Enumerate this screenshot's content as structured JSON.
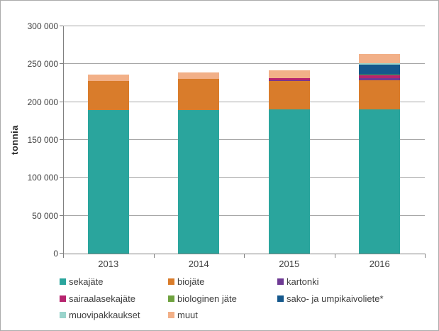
{
  "chart_data": {
    "type": "bar",
    "stacked": true,
    "title": "",
    "ylabel": "tonnia",
    "xlabel": "",
    "categories": [
      "2013",
      "2014",
      "2015",
      "2016"
    ],
    "series": [
      {
        "name": "sekajäte",
        "color": "#2aa59d",
        "values": [
          189000,
          189000,
          190000,
          190000
        ]
      },
      {
        "name": "biojäte",
        "color": "#d97c2b",
        "values": [
          39000,
          42000,
          38000,
          38500
        ]
      },
      {
        "name": "kartonki",
        "color": "#6e3a94",
        "values": [
          0,
          0,
          1000,
          3000
        ]
      },
      {
        "name": "sairaalasekajäte",
        "color": "#b6246e",
        "values": [
          0,
          0,
          2500,
          4000
        ]
      },
      {
        "name": "biologinen jäte",
        "color": "#6fa23f",
        "values": [
          0,
          0,
          0,
          500
        ]
      },
      {
        "name": "sako- ja umpikaivoliete*",
        "color": "#15588c",
        "values": [
          0,
          0,
          0,
          13500
        ]
      },
      {
        "name": "muovipakkaukset",
        "color": "#9ad4cc",
        "values": [
          0,
          0,
          0,
          2000
        ]
      },
      {
        "name": "muut",
        "color": "#f2b088",
        "values": [
          8000,
          8000,
          10500,
          11500
        ]
      }
    ],
    "ylim": [
      0,
      300000
    ],
    "ytick_step": 50000,
    "ytick_labels": [
      "0",
      "50 000",
      "100 000",
      "150 000",
      "200 000",
      "250 000",
      "300 000"
    ],
    "grid": true,
    "legend_position": "bottom",
    "legend_rows": [
      [
        "sekajäte",
        "biojäte",
        "kartonki"
      ],
      [
        "sairaalasekajäte",
        "biologinen jäte",
        "sako- ja umpikaivoliete*"
      ],
      [
        "muovipakkaukset",
        "muut"
      ]
    ]
  }
}
